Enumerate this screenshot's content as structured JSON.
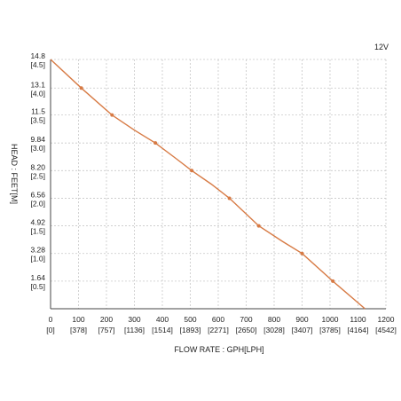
{
  "chart_data": {
    "type": "line",
    "annotation": "12V",
    "xlabel": "FLOW RATE : GPH[LPH]",
    "ylabel": "HEAD : FEET[M]",
    "xlim": [
      0,
      1200
    ],
    "ylim": [
      0,
      14.8
    ],
    "x_ticks": [
      {
        "value": 0,
        "label": "0",
        "sub": "[0]"
      },
      {
        "value": 100,
        "label": "100",
        "sub": "[378]"
      },
      {
        "value": 200,
        "label": "200",
        "sub": "[757]"
      },
      {
        "value": 300,
        "label": "300",
        "sub": "[1136]"
      },
      {
        "value": 400,
        "label": "400",
        "sub": "[1514]"
      },
      {
        "value": 500,
        "label": "500",
        "sub": "[1893]"
      },
      {
        "value": 600,
        "label": "600",
        "sub": "[2271]"
      },
      {
        "value": 700,
        "label": "700",
        "sub": "[2650]"
      },
      {
        "value": 800,
        "label": "800",
        "sub": "[3028]"
      },
      {
        "value": 900,
        "label": "900",
        "sub": "[3407]"
      },
      {
        "value": 1000,
        "label": "1000",
        "sub": "[3785]"
      },
      {
        "value": 1100,
        "label": "1100",
        "sub": "[4164]"
      },
      {
        "value": 1200,
        "label": "1200",
        "sub": "[4542]"
      }
    ],
    "y_ticks": [
      {
        "value": 1.64,
        "label": "1.64",
        "sub": "[0.5]"
      },
      {
        "value": 3.28,
        "label": "3.28",
        "sub": "[1.0]"
      },
      {
        "value": 4.92,
        "label": "4.92",
        "sub": "[1.5]"
      },
      {
        "value": 6.56,
        "label": "6.56",
        "sub": "[2.0]"
      },
      {
        "value": 8.2,
        "label": "8.20",
        "sub": "[2.5]"
      },
      {
        "value": 9.84,
        "label": "9.84",
        "sub": "[3.0]"
      },
      {
        "value": 11.5,
        "label": "11.5",
        "sub": "[3.5]"
      },
      {
        "value": 13.1,
        "label": "13.1",
        "sub": "[4.0]"
      },
      {
        "value": 14.8,
        "label": "14.8",
        "sub": "[4.5]"
      }
    ],
    "grid": true,
    "series": [
      {
        "color": "#d77a44",
        "x": [
          0,
          110,
          220,
          300,
          375,
          450,
          505,
          575,
          640,
          745,
          830,
          900,
          1010,
          1125
        ],
        "y": [
          14.8,
          13.1,
          11.5,
          10.6,
          9.84,
          8.9,
          8.2,
          7.4,
          6.56,
          4.92,
          4.0,
          3.28,
          1.64,
          0.0
        ],
        "markers_at": [
          110,
          220,
          375,
          505,
          640,
          745,
          900,
          1010
        ]
      }
    ]
  }
}
